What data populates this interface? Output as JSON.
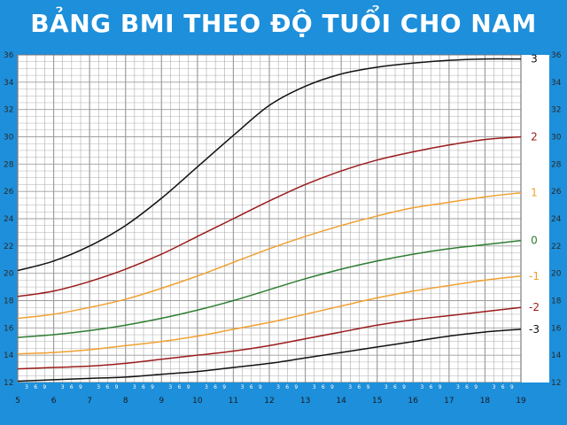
{
  "title": "BẢNG BMI THEO ĐỘ TUỔI CHO NAM",
  "colors": {
    "background": "#1d8fdb",
    "plot_background": "#ffffff",
    "grid": "#9e9e9e",
    "black": "#111111",
    "red": "#9b1b1b",
    "orange": "#f0a030",
    "green": "#2e7d32"
  },
  "chart_data": {
    "type": "line",
    "title": "BẢNG BMI THEO ĐỘ TUỔI CHO NAM",
    "xlabel": "",
    "ylabel": "",
    "xlim": [
      5,
      19
    ],
    "ylim": [
      12,
      36
    ],
    "x_ticks": [
      "5",
      "6",
      "7",
      "8",
      "9",
      "10",
      "11",
      "12",
      "13",
      "14",
      "15",
      "16",
      "17",
      "18",
      "19"
    ],
    "x_subticks": [
      "3",
      "6",
      "9"
    ],
    "y_ticks": [
      "12",
      "14",
      "16",
      "18",
      "20",
      "22",
      "24",
      "26",
      "28",
      "30",
      "32",
      "34",
      "36"
    ],
    "grid": true,
    "x": [
      5,
      6,
      7,
      8,
      9,
      10,
      11,
      12,
      13,
      14,
      15,
      16,
      17,
      18,
      19
    ],
    "series": [
      {
        "name": "3",
        "color": "#111111",
        "values": [
          20.2,
          20.9,
          22.0,
          23.5,
          25.5,
          27.8,
          30.1,
          32.3,
          33.7,
          34.6,
          35.1,
          35.4,
          35.6,
          35.7,
          35.7
        ]
      },
      {
        "name": "2",
        "color": "#9b1b1b",
        "values": [
          18.3,
          18.7,
          19.4,
          20.3,
          21.4,
          22.7,
          24.0,
          25.3,
          26.5,
          27.5,
          28.3,
          28.9,
          29.4,
          29.8,
          30.0
        ]
      },
      {
        "name": "1",
        "color": "#f0a030",
        "values": [
          16.7,
          17.0,
          17.5,
          18.1,
          18.9,
          19.8,
          20.8,
          21.8,
          22.7,
          23.5,
          24.2,
          24.8,
          25.2,
          25.6,
          25.9
        ]
      },
      {
        "name": "0",
        "color": "#2e7d32",
        "values": [
          15.3,
          15.5,
          15.8,
          16.2,
          16.7,
          17.3,
          18.0,
          18.8,
          19.6,
          20.3,
          20.9,
          21.4,
          21.8,
          22.1,
          22.4
        ]
      },
      {
        "name": "-1",
        "color": "#f0a030",
        "values": [
          14.1,
          14.2,
          14.4,
          14.7,
          15.0,
          15.4,
          15.9,
          16.4,
          17.0,
          17.6,
          18.2,
          18.7,
          19.1,
          19.5,
          19.8
        ]
      },
      {
        "name": "-2",
        "color": "#9b1b1b",
        "values": [
          13.0,
          13.1,
          13.2,
          13.4,
          13.7,
          14.0,
          14.3,
          14.7,
          15.2,
          15.7,
          16.2,
          16.6,
          16.9,
          17.2,
          17.5
        ]
      },
      {
        "name": "-3",
        "color": "#111111",
        "values": [
          12.1,
          12.2,
          12.3,
          12.4,
          12.6,
          12.8,
          13.1,
          13.4,
          13.8,
          14.2,
          14.6,
          15.0,
          15.4,
          15.7,
          15.9
        ]
      }
    ]
  }
}
